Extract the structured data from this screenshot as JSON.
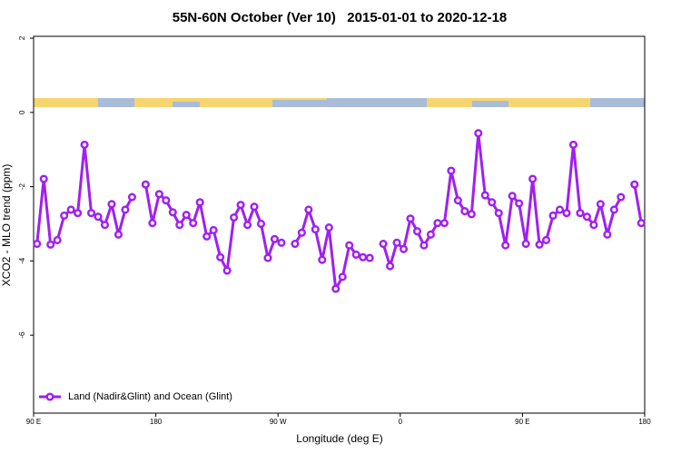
{
  "chart_data": {
    "type": "line",
    "title": "55N-60N October (Ver 10)   2015-01-01 to 2020-12-18",
    "x_label": "Longitude (deg E)",
    "y_label": "XCO2 - MLO trend (ppm)",
    "x": [
      92.5,
      97.5,
      102.5,
      107.5,
      112.5,
      117.5,
      122.5,
      127.5,
      132.5,
      137.5,
      142.5,
      147.5,
      152.5,
      157.5,
      162.5,
      167.5,
      172.5,
      177.5,
      182.5,
      187.5,
      192.5,
      197.5,
      202.5,
      207.5,
      212.5,
      217.5,
      222.5,
      227.5,
      232.5,
      237.5,
      242.5,
      247.5,
      252.5,
      257.5,
      262.5,
      267.5,
      272.5,
      277.5,
      282.5,
      287.5,
      292.5,
      297.5,
      302.5,
      307.5,
      312.5,
      317.5,
      322.5,
      327.5,
      332.5,
      337.5,
      342.5,
      347.5,
      352.5,
      357.5,
      362.5,
      367.5,
      372.5,
      377.5,
      382.5,
      387.5,
      392.5,
      397.5,
      402.5,
      407.5,
      412.5,
      417.5,
      422.5,
      427.5,
      432.5,
      437.5,
      442.5,
      447.5,
      452.5,
      457.5,
      462.5,
      467.5,
      472.5,
      477.5,
      482.5,
      487.5,
      492.5,
      497.5,
      502.5,
      507.5,
      512.5,
      517.5,
      522.5,
      527.5,
      532.5,
      537.5
    ],
    "series": [
      {
        "name": "Land (Nadir&Glint) and Ocean (Glint)",
        "color": "#a020f0",
        "values": [
          -3.54,
          -1.79,
          -3.56,
          -3.44,
          -2.78,
          -2.62,
          -2.71,
          -0.87,
          -2.71,
          -2.81,
          -3.03,
          -2.47,
          -3.29,
          -2.62,
          -2.28,
          null,
          -1.94,
          -2.98,
          -2.2,
          -2.37,
          -2.69,
          -3.03,
          -2.76,
          -2.98,
          -2.42,
          -3.34,
          -3.17,
          -3.9,
          -4.26,
          -2.83,
          -2.49,
          -3.03,
          -2.54,
          -3.0,
          -3.92,
          -3.41,
          -3.51,
          null,
          -3.54,
          -3.24,
          -2.62,
          -3.15,
          -3.97,
          -3.1,
          -4.75,
          -4.43,
          -3.58,
          -3.83,
          -3.9,
          -3.92,
          null,
          -3.54,
          -4.14,
          -3.51,
          -3.68,
          -2.86,
          -3.2,
          -3.58,
          -3.29,
          -2.98,
          -2.98,
          -1.57,
          -2.37,
          -2.66,
          -2.74,
          -0.56,
          -2.23,
          -2.42,
          -2.71,
          -3.58,
          -2.25,
          -2.45,
          -3.54,
          -1.79,
          -3.56,
          -3.44,
          -2.78,
          -2.62,
          -2.71,
          -0.87,
          -2.71,
          -2.81,
          -3.03,
          -2.47,
          -3.29,
          -2.62,
          -2.28,
          null,
          -1.94,
          -2.98
        ]
      }
    ],
    "xlim": [
      90,
      540
    ],
    "xticks": [
      {
        "value": 90,
        "label": "90 E"
      },
      180,
      {
        "value": 270,
        "label": "90 W"
      },
      {
        "value": 360,
        "label": "0"
      },
      {
        "value": 450,
        "label": "90 E"
      },
      {
        "value": 540,
        "label": "180"
      }
    ],
    "ylim": [
      -8.1,
      2.05
    ],
    "yticks": [
      -6,
      -4,
      -2,
      0,
      2
    ],
    "legend": "bottom-left"
  }
}
